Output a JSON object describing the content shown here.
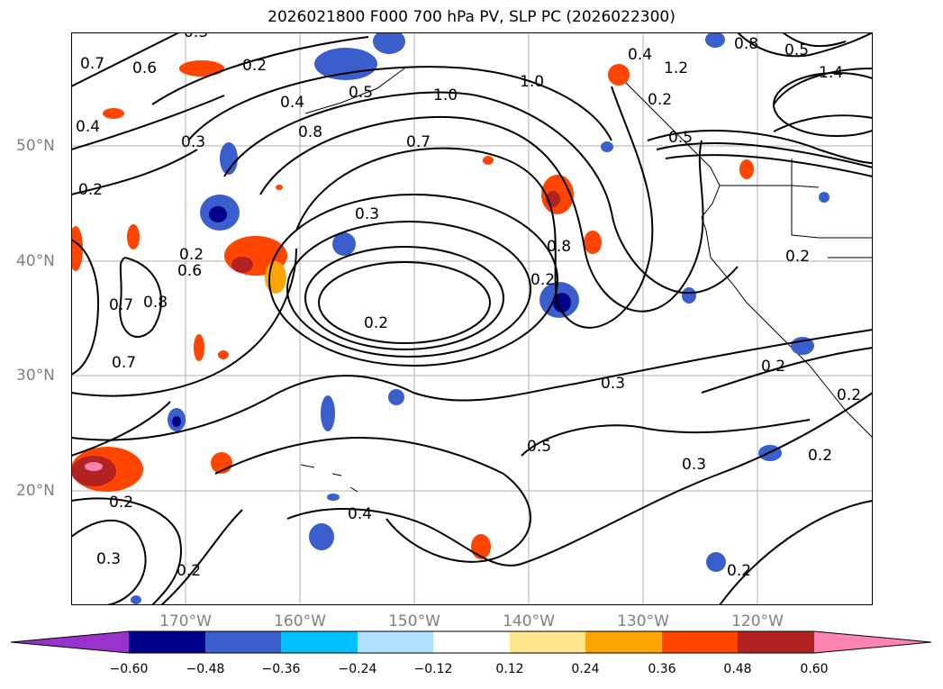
{
  "title": "2026021800 F000 700 hPa PV, SLP PC (2026022300)",
  "lat_labels": [
    "50°N",
    "40°N",
    "30°N",
    "20°N"
  ],
  "lon_labels": [
    "170°W",
    "160°W",
    "150°W",
    "140°W",
    "130°W",
    "120°W"
  ],
  "colorbar": {
    "ticks": [
      "−0.60",
      "−0.48",
      "−0.36",
      "−0.24",
      "−0.12",
      "0.12",
      "0.24",
      "0.36",
      "0.48",
      "0.60"
    ],
    "colors": [
      "#9932cc",
      "#00008b",
      "#3a5fcd",
      "#00bfff",
      "#b0e2ff",
      "#ffffff",
      "#ffe68c",
      "#ffa500",
      "#ff4500",
      "#b22222",
      "#ff83b0"
    ]
  },
  "contour_labels": [
    "0.7",
    "0.6",
    "0.3",
    "0.2",
    "0.4",
    "0.5",
    "1.0",
    "1.0",
    "0.4",
    "1.2",
    "1.4",
    "0.5",
    "0.2",
    "0.3",
    "0.8",
    "0.7",
    "0.4",
    "0.2",
    "0.3",
    "0.6",
    "0.8",
    "0.2",
    "0.7",
    "0.8",
    "0.2",
    "0.7",
    "0.3",
    "0.2",
    "0.5",
    "0.3",
    "0.2",
    "0.2",
    "0.4",
    "0.3",
    "0.2",
    "0.2",
    "0.2",
    "0.2",
    "0.5",
    "0.8",
    "0.2"
  ]
}
